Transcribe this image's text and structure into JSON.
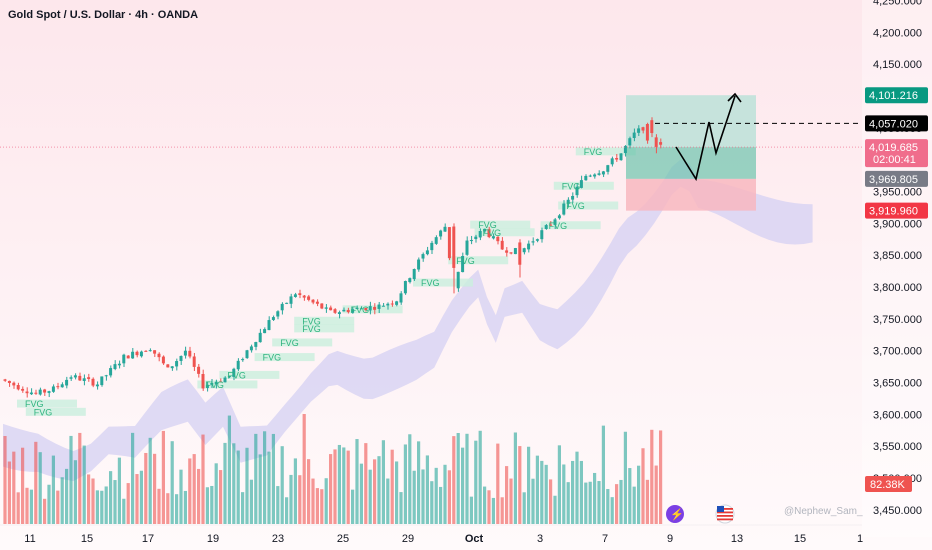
{
  "header": {
    "title": "Gold Spot / U.S. Dollar · 4h · OANDA"
  },
  "colors": {
    "up": "#26a69a",
    "down": "#ef5350",
    "fvg_text": "#2fb37f",
    "fvg_box": "#c9efdd",
    "cloud": "#d4d0f3",
    "bg_top": "#fde7ec",
    "bg_bottom": "#fffafb",
    "tp_zone": "#9fd8cc",
    "sl_zone": "#f8b7c0"
  },
  "watermark": "@Nephew_Sam_",
  "chart_data": {
    "type": "candlestick",
    "y_axis": {
      "ticks": [
        {
          "value": 4250,
          "label": "4,250.000"
        },
        {
          "value": 4200,
          "label": "4,200.000"
        },
        {
          "value": 4150,
          "label": "4,150.000"
        },
        {
          "value": 4100,
          "label": "4,100.000"
        },
        {
          "value": 4050,
          "label": "4,050.000"
        },
        {
          "value": 4000,
          "label": "4,000.000"
        },
        {
          "value": 3950,
          "label": "3,950.000"
        },
        {
          "value": 3900,
          "label": "3,900.000"
        },
        {
          "value": 3850,
          "label": "3,850.000"
        },
        {
          "value": 3800,
          "label": "3,800.000"
        },
        {
          "value": 3750,
          "label": "3,750.000"
        },
        {
          "value": 3700,
          "label": "3,700.000"
        },
        {
          "value": 3650,
          "label": "3,650.000"
        },
        {
          "value": 3600,
          "label": "3,600.000"
        },
        {
          "value": 3550,
          "label": "3,550.000"
        },
        {
          "value": 3500,
          "label": "3,500.000"
        },
        {
          "value": 3450,
          "label": "3,450.000"
        }
      ]
    },
    "x_axis": {
      "ticks": [
        "11",
        "15",
        "17",
        "19",
        "23",
        "25",
        "29",
        "Oct",
        "3",
        "7",
        "9",
        "13",
        "15",
        "1"
      ]
    },
    "price_tags": [
      {
        "label": "4,101.216",
        "value": 4101.216,
        "color": "#089981"
      },
      {
        "label": "4,057.020",
        "value": 4057.02,
        "color": "#000000"
      },
      {
        "label": "4,019.685",
        "sublabel": "02:00:41",
        "value": 4019.685,
        "color": "#f06d8c"
      },
      {
        "label": "3,969.805",
        "value": 3969.805,
        "color": "#787b86"
      },
      {
        "label": "3,919.960",
        "value": 3919.96,
        "color": "#f23645"
      }
    ],
    "volume_tag": {
      "label": "82.38K",
      "color": "#ef5350"
    },
    "fvg_labels": [
      {
        "text": "FVG",
        "x": 5,
        "y": 3617
      },
      {
        "text": "FVG",
        "x": 7,
        "y": 3604
      },
      {
        "text": "FVG",
        "x": 46,
        "y": 3647
      },
      {
        "text": "FVG",
        "x": 51,
        "y": 3662
      },
      {
        "text": "FVG",
        "x": 59,
        "y": 3690
      },
      {
        "text": "FVG",
        "x": 63,
        "y": 3713
      },
      {
        "text": "FVG",
        "x": 68,
        "y": 3735
      },
      {
        "text": "FVG",
        "x": 68,
        "y": 3747
      },
      {
        "text": "FVG",
        "x": 79,
        "y": 3765
      },
      {
        "text": "FVG",
        "x": 95,
        "y": 3807
      },
      {
        "text": "FVG",
        "x": 103,
        "y": 3842
      },
      {
        "text": "FVG",
        "x": 108,
        "y": 3898
      },
      {
        "text": "FVG",
        "x": 109,
        "y": 3886
      },
      {
        "text": "FVG",
        "x": 128,
        "y": 3928
      },
      {
        "text": "FVG",
        "x": 127,
        "y": 3959
      },
      {
        "text": "FVG",
        "x": 124,
        "y": 3897
      },
      {
        "text": "FVG",
        "x": 132,
        "y": 4013
      }
    ]
  }
}
